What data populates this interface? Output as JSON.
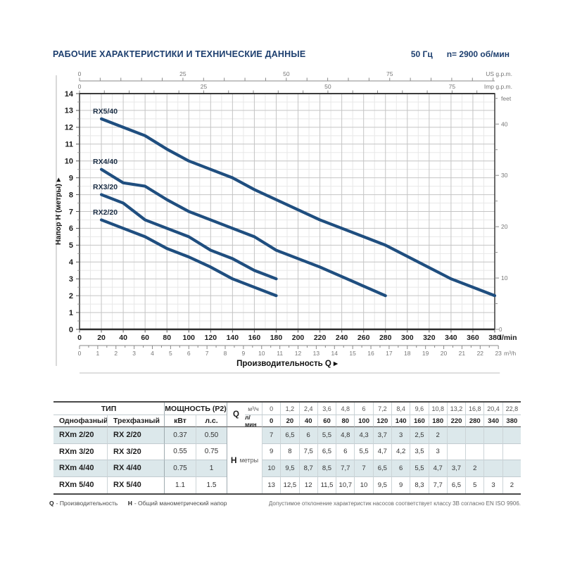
{
  "page": {
    "title": "РАБОЧИЕ ХАРАКТЕРИСТИКИ И ТЕХНИЧЕСКИЕ ДАННЫЕ",
    "frequency": "50 Гц",
    "speed": "n= 2900 об/мин"
  },
  "chart_data": {
    "type": "line",
    "title": "",
    "xlabel": "Производительность Q  ▸",
    "ylabel": "Напор H (метры)  ▸",
    "xlim_lmin": [
      0,
      380
    ],
    "ylim_m": [
      0,
      14
    ],
    "grid": true,
    "curve_color": "#1f4e7f",
    "x_ticks_lmin": [
      0,
      20,
      40,
      60,
      80,
      100,
      120,
      140,
      160,
      180,
      200,
      220,
      240,
      260,
      280,
      300,
      320,
      340,
      360,
      380
    ],
    "x_scale_lmin_label": "l/min",
    "x_labels_m3h": [
      0,
      1,
      2,
      3,
      4,
      5,
      6,
      7,
      8,
      9,
      10,
      11,
      12,
      13,
      14,
      15,
      16,
      17,
      18,
      19,
      20,
      21,
      22,
      23
    ],
    "x_scale_m3h_label": "m³/h",
    "top_scales": [
      {
        "unit": "US g.p.m.",
        "ticks": [
          0,
          25,
          50,
          75
        ],
        "lmin_per_unit": 3.785
      },
      {
        "unit": "Imp g.p.m.",
        "ticks": [
          0,
          25,
          50,
          75
        ],
        "lmin_per_unit": 4.546
      }
    ],
    "right_scale": {
      "unit": "feet",
      "labeled_ticks": [
        10,
        20,
        30,
        40
      ],
      "zero_label": "0",
      "m_per_unit": 0.3048
    },
    "series": [
      {
        "name": "RX5/40",
        "x_lmin": [
          20,
          40,
          60,
          80,
          100,
          120,
          140,
          160,
          180,
          220,
          280,
          340,
          380
        ],
        "h_m": [
          12.5,
          12,
          11.5,
          10.7,
          10,
          9.5,
          9,
          8.3,
          7.7,
          6.5,
          5,
          3,
          2
        ]
      },
      {
        "name": "RX4/40",
        "x_lmin": [
          20,
          40,
          60,
          80,
          100,
          120,
          140,
          160,
          180,
          220,
          280
        ],
        "h_m": [
          9.5,
          8.7,
          8.5,
          7.7,
          7,
          6.5,
          6,
          5.5,
          4.7,
          3.7,
          2
        ]
      },
      {
        "name": "RX3/20",
        "x_lmin": [
          20,
          40,
          60,
          80,
          100,
          120,
          140,
          160,
          180
        ],
        "h_m": [
          8,
          7.5,
          6.5,
          6,
          5.5,
          4.7,
          4.2,
          3.5,
          3
        ]
      },
      {
        "name": "RX2/20",
        "x_lmin": [
          20,
          40,
          60,
          80,
          100,
          120,
          140,
          160,
          180
        ],
        "h_m": [
          6.5,
          6,
          5.5,
          4.8,
          4.3,
          3.7,
          3,
          2.5,
          2
        ]
      }
    ]
  },
  "table": {
    "header": {
      "type_group": "ТИП",
      "power_group": "МОЩНОСТЬ (P2)",
      "col_single_phase": "Однофазный",
      "col_three_phase": "Трехфазный",
      "col_kw": "кВт",
      "col_hp": "л.с.",
      "q_label": "Q",
      "q_row1_unit": "м³/ч",
      "q_row2_unit": "л/мин",
      "h_label": "H",
      "h_unit": "метры"
    },
    "q_m3h": [
      "0",
      "1,2",
      "2,4",
      "3,6",
      "4,8",
      "6",
      "7,2",
      "8,4",
      "9,6",
      "10,8",
      "13,2",
      "16,8",
      "20,4",
      "22,8"
    ],
    "q_lmin": [
      "0",
      "20",
      "40",
      "60",
      "80",
      "100",
      "120",
      "140",
      "160",
      "180",
      "220",
      "280",
      "340",
      "380"
    ],
    "rows": [
      {
        "single": "RXm 2/20",
        "three": "RX 2/20",
        "kw": "0.37",
        "hp": "0.50",
        "h": [
          "7",
          "6,5",
          "6",
          "5,5",
          "4,8",
          "4,3",
          "3,7",
          "3",
          "2,5",
          "2",
          "",
          "",
          "",
          ""
        ]
      },
      {
        "single": "RXm 3/20",
        "three": "RX 3/20",
        "kw": "0.55",
        "hp": "0.75",
        "h": [
          "9",
          "8",
          "7,5",
          "6,5",
          "6",
          "5,5",
          "4,7",
          "4,2",
          "3,5",
          "3",
          "",
          "",
          "",
          ""
        ]
      },
      {
        "single": "RXm 4/40",
        "three": "RX 4/40",
        "kw": "0.75",
        "hp": "1",
        "h": [
          "10",
          "9,5",
          "8,7",
          "8,5",
          "7,7",
          "7",
          "6,5",
          "6",
          "5,5",
          "4,7",
          "3,7",
          "2",
          "",
          ""
        ]
      },
      {
        "single": "RXm 5/40",
        "three": "RX 5/40",
        "kw": "1.1",
        "hp": "1.5",
        "h": [
          "13",
          "12,5",
          "12",
          "11,5",
          "10,7",
          "10",
          "9,5",
          "9",
          "8,3",
          "7,7",
          "6,5",
          "5",
          "3",
          "2"
        ]
      }
    ]
  },
  "footer": {
    "legend_q_label": "Q",
    "legend_q_text": "- Производительность",
    "legend_h_label": "H",
    "legend_h_text": "- Общий манометрический напор",
    "note": "Допустимое отклонение характеристик насосов соответствует классу 3B согласно EN ISO 9906."
  }
}
